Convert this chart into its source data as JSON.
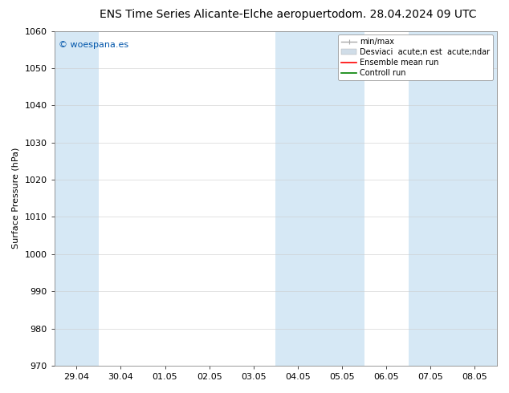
{
  "title_left": "ENS Time Series Alicante-Elche aeropuerto",
  "title_right": "dom. 28.04.2024 09 UTC",
  "ylabel": "Surface Pressure (hPa)",
  "ylim": [
    970,
    1060
  ],
  "yticks": [
    970,
    980,
    990,
    1000,
    1010,
    1020,
    1030,
    1040,
    1050,
    1060
  ],
  "xtick_labels": [
    "29.04",
    "30.04",
    "01.05",
    "02.05",
    "03.05",
    "04.05",
    "05.05",
    "06.05",
    "07.05",
    "08.05"
  ],
  "watermark": "© woespana.es",
  "watermark_color": "#0055aa",
  "background_color": "#ffffff",
  "band_color": "#d6e8f5",
  "legend_minmax_color": "#aaaaaa",
  "legend_std_color": "#d0dde8",
  "legend_ens_color": "#ff0000",
  "legend_ctrl_color": "#008000",
  "title_fontsize": 10,
  "tick_fontsize": 8,
  "ylabel_fontsize": 8,
  "legend_fontsize": 7
}
